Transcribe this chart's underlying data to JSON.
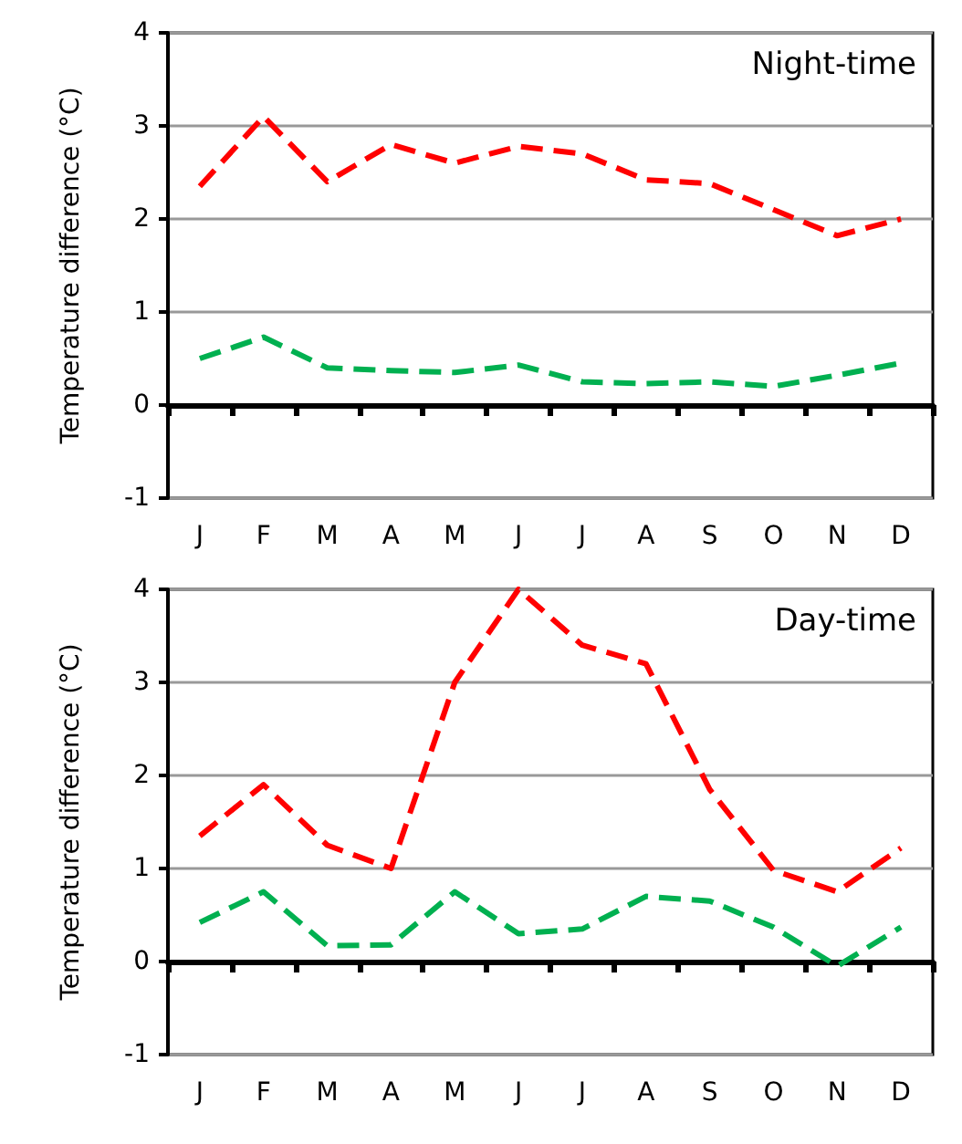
{
  "chart_data": [
    {
      "type": "line",
      "title": "Night-time",
      "ylabel": "Temperature difference (°C)",
      "categories": [
        "J",
        "F",
        "M",
        "A",
        "M",
        "J",
        "J",
        "A",
        "S",
        "O",
        "N",
        "D"
      ],
      "series": [
        {
          "color": "#ff0000",
          "values": [
            2.35,
            3.1,
            2.4,
            2.8,
            2.6,
            2.78,
            2.7,
            2.42,
            2.38,
            2.1,
            1.82,
            2.0
          ]
        },
        {
          "color": "#00b050",
          "values": [
            0.5,
            0.73,
            0.4,
            0.37,
            0.35,
            0.43,
            0.25,
            0.23,
            0.25,
            0.2,
            0.32,
            0.45
          ]
        }
      ],
      "ylim": [
        -1,
        4
      ],
      "yticks": [
        -1,
        0,
        1,
        2,
        3,
        4
      ],
      "grid": "y",
      "marker": "none",
      "line_style": "dashed"
    },
    {
      "type": "line",
      "title": "Day-time",
      "ylabel": "Temperature difference (°C)",
      "categories": [
        "J",
        "F",
        "M",
        "A",
        "M",
        "J",
        "J",
        "A",
        "S",
        "O",
        "N",
        "D"
      ],
      "series": [
        {
          "color": "#ff0000",
          "values": [
            1.35,
            1.9,
            1.25,
            1.0,
            3.0,
            4.0,
            3.4,
            3.2,
            1.85,
            0.98,
            0.75,
            1.22
          ]
        },
        {
          "color": "#00b050",
          "values": [
            0.42,
            0.75,
            0.17,
            0.18,
            0.75,
            0.3,
            0.35,
            0.7,
            0.65,
            0.37,
            -0.05,
            0.37
          ]
        }
      ],
      "ylim": [
        -1,
        4
      ],
      "yticks": [
        -1,
        0,
        1,
        2,
        3,
        4
      ],
      "grid": "y",
      "marker": "none",
      "line_style": "dashed"
    }
  ]
}
